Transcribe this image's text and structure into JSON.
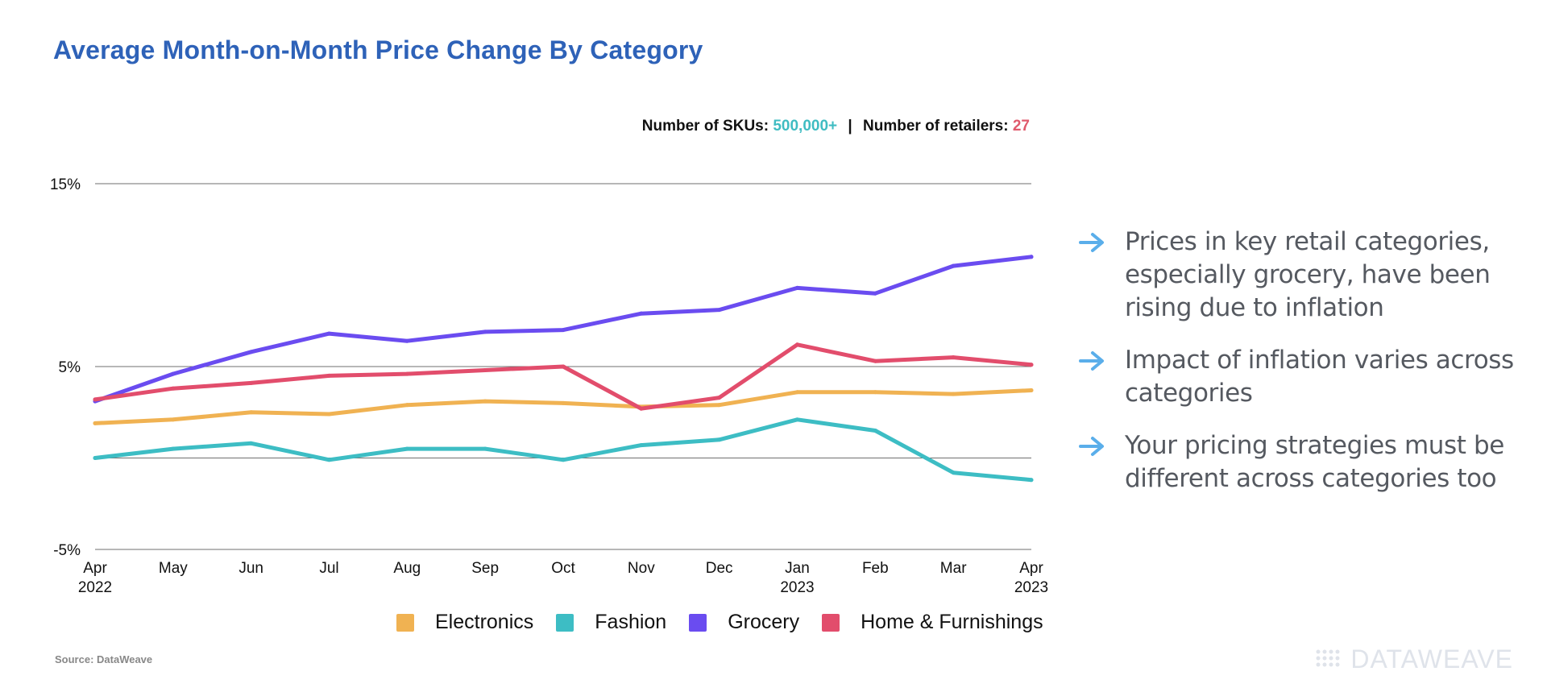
{
  "title": "Average Month-on-Month Price Change By Category",
  "meta": {
    "skus_label": "Number of SKUs:",
    "skus_value": "500,000+",
    "separator": "|",
    "retailers_label": "Number of retailers:",
    "retailers_value": "27"
  },
  "chart_data": {
    "type": "line",
    "x": [
      "Apr 2022",
      "May",
      "Jun",
      "Jul",
      "Aug",
      "Sep",
      "Oct",
      "Nov",
      "Dec",
      "Jan 2023",
      "Feb",
      "Mar",
      "Apr 2023"
    ],
    "x_tick_labels": [
      [
        "Apr",
        "2022"
      ],
      [
        "May"
      ],
      [
        "Jun"
      ],
      [
        "Jul"
      ],
      [
        "Aug"
      ],
      [
        "Sep"
      ],
      [
        "Oct"
      ],
      [
        "Nov"
      ],
      [
        "Dec"
      ],
      [
        "Jan",
        "2023"
      ],
      [
        "Feb"
      ],
      [
        "Mar"
      ],
      [
        "Apr",
        "2023"
      ]
    ],
    "ylim": [
      -5,
      15
    ],
    "y_tick_labels": [
      "15%",
      "5%",
      "-5%"
    ],
    "y_ticks": [
      15,
      5,
      -5
    ],
    "gridlines": [
      15,
      5,
      0,
      -5
    ],
    "grid": true,
    "legend_position": "bottom",
    "series": [
      {
        "name": "Electronics",
        "color": "#f0b252",
        "values": [
          1.9,
          2.1,
          2.5,
          2.4,
          2.9,
          3.1,
          3.0,
          2.8,
          2.9,
          3.6,
          3.6,
          3.5,
          3.7
        ]
      },
      {
        "name": "Fashion",
        "color": "#3dbdc4",
        "values": [
          0.0,
          0.5,
          0.8,
          -0.1,
          0.5,
          0.5,
          -0.1,
          0.7,
          1.0,
          2.1,
          1.5,
          -0.8,
          -1.2
        ]
      },
      {
        "name": "Grocery",
        "color": "#6a4cf0",
        "values": [
          3.1,
          4.6,
          5.8,
          6.8,
          6.4,
          6.9,
          7.0,
          7.9,
          8.1,
          9.3,
          9.0,
          10.5,
          11.0
        ]
      },
      {
        "name": "Home & Furnishings",
        "color": "#e24d6c",
        "values": [
          3.2,
          3.8,
          4.1,
          4.5,
          4.6,
          4.8,
          5.0,
          2.7,
          3.3,
          6.2,
          5.3,
          5.5,
          5.1
        ]
      }
    ]
  },
  "notes": [
    {
      "icon": "arrow-right-icon",
      "text": "Prices in key retail categories, especially grocery, have been rising due to inflation"
    },
    {
      "icon": "arrow-right-icon",
      "text": "Impact of inflation varies across categories"
    },
    {
      "icon": "arrow-right-icon",
      "text": "Your pricing strategies must be different across categories too"
    }
  ],
  "source": "Source: DataWeave",
  "logo_text": "DATAWEAVE",
  "colors": {
    "title": "#2e62b8",
    "arrow": "#5aaeea",
    "note_text": "#555960"
  }
}
